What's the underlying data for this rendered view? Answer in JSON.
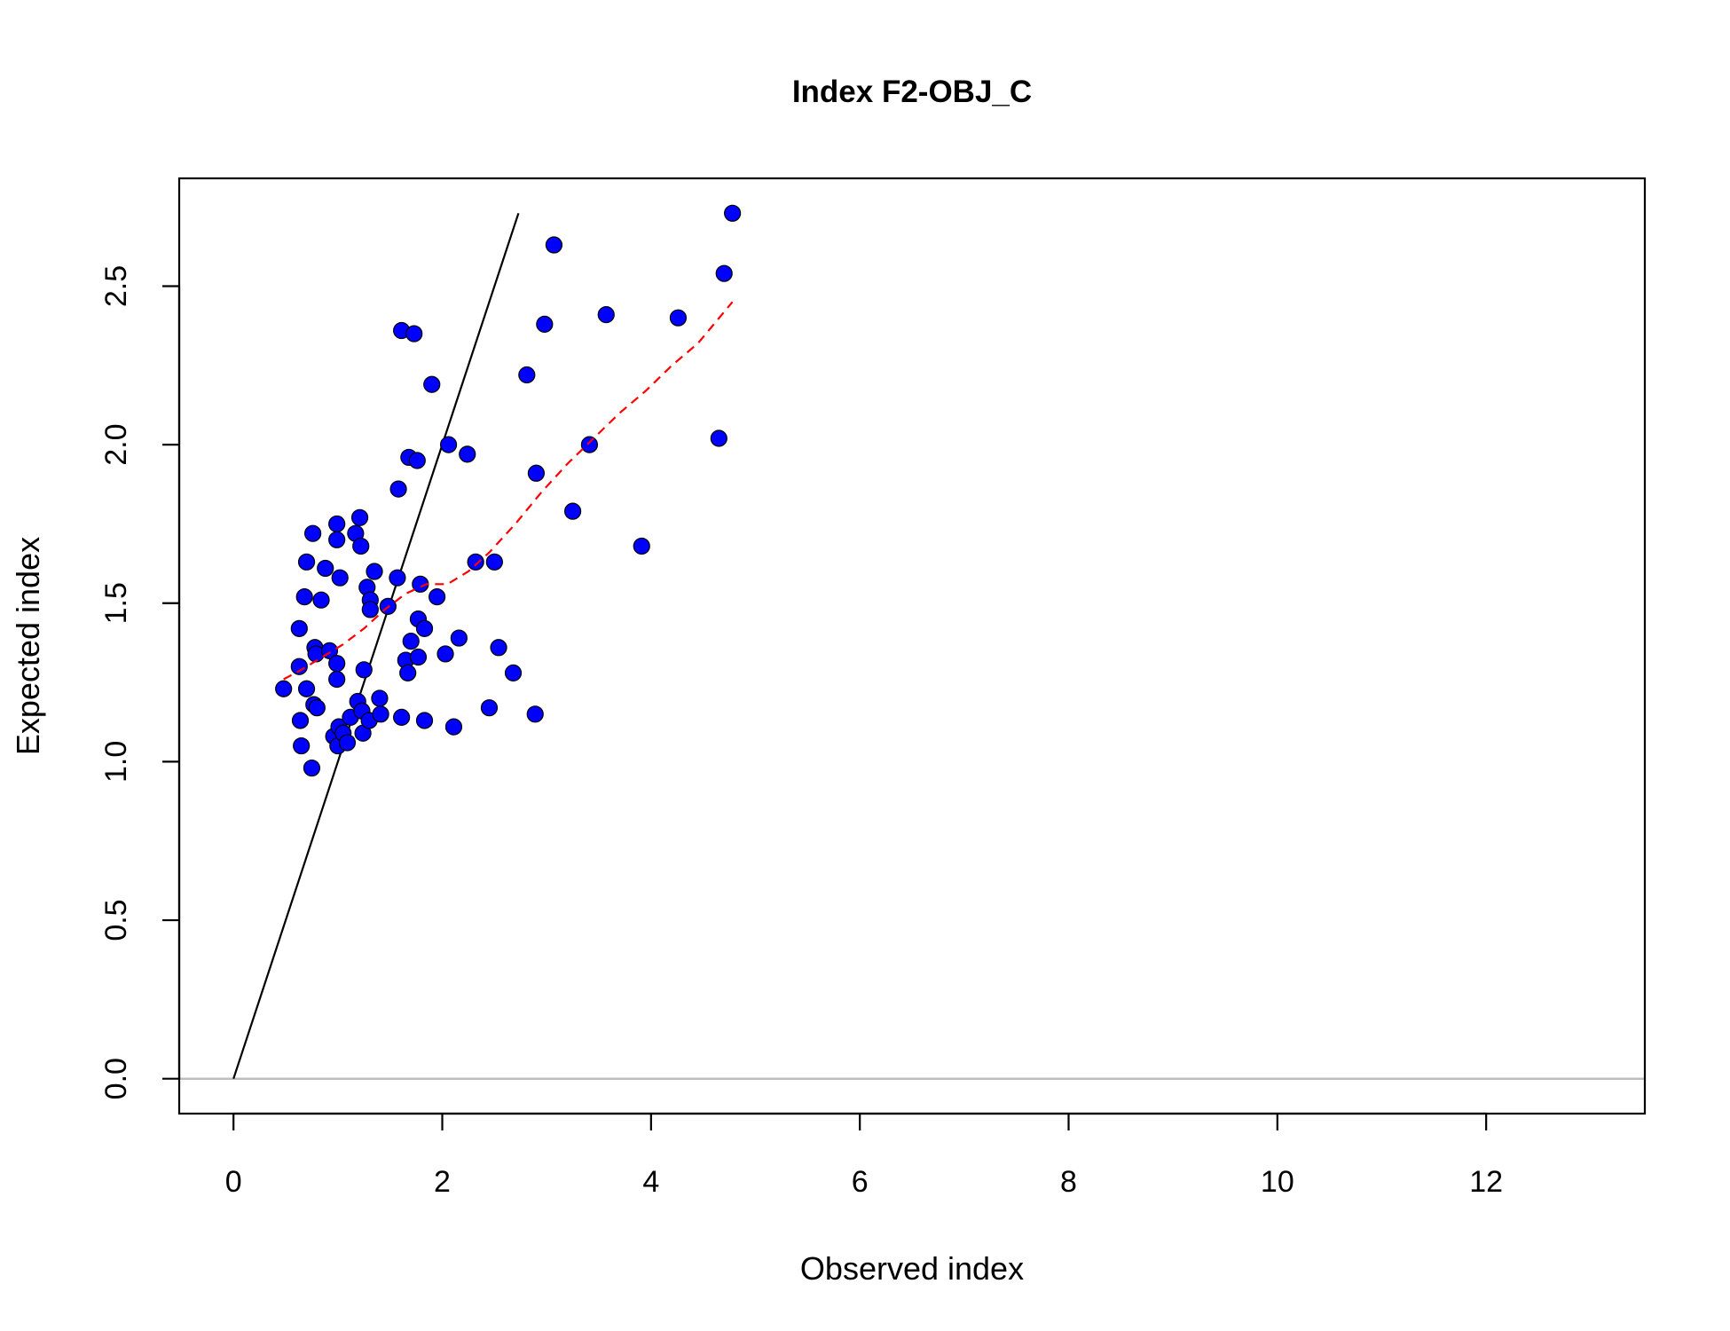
{
  "chart_data": {
    "type": "scatter",
    "title": "Index F2-OBJ_C",
    "xlabel": "Observed index",
    "ylabel": "Expected index",
    "xlim": [
      -0.52,
      13.52
    ],
    "ylim": [
      -0.11,
      2.84
    ],
    "x_ticks": [
      0,
      2,
      4,
      6,
      8,
      10,
      12
    ],
    "x_tick_labels": [
      "0",
      "2",
      "4",
      "6",
      "8",
      "10",
      "12"
    ],
    "y_ticks": [
      0.0,
      0.5,
      1.0,
      1.5,
      2.0,
      2.5
    ],
    "y_tick_labels": [
      "0.0",
      "0.5",
      "1.0",
      "1.5",
      "2.0",
      "2.5"
    ],
    "grid": false,
    "colors": {
      "points": "#0000ff",
      "point_outline": "#000000",
      "identity_line": "#000000",
      "smooth_line": "#ff0000",
      "zero_line": "#bebebe"
    },
    "series": [
      {
        "kind": "points",
        "points": [
          [
            0.48,
            1.23
          ],
          [
            0.63,
            1.42
          ],
          [
            0.63,
            1.3
          ],
          [
            0.64,
            1.13
          ],
          [
            0.65,
            1.05
          ],
          [
            0.68,
            1.52
          ],
          [
            0.7,
            1.63
          ],
          [
            0.7,
            1.23
          ],
          [
            0.75,
            0.98
          ],
          [
            0.76,
            1.72
          ],
          [
            0.77,
            1.18
          ],
          [
            0.78,
            1.36
          ],
          [
            0.79,
            1.34
          ],
          [
            0.8,
            1.17
          ],
          [
            0.84,
            1.51
          ],
          [
            0.88,
            1.61
          ],
          [
            0.92,
            1.35
          ],
          [
            0.96,
            1.08
          ],
          [
            0.99,
            1.75
          ],
          [
            0.99,
            1.7
          ],
          [
            0.99,
            1.31
          ],
          [
            0.99,
            1.26
          ],
          [
            1.0,
            1.05
          ],
          [
            1.01,
            1.11
          ],
          [
            1.02,
            1.58
          ],
          [
            1.05,
            1.09
          ],
          [
            1.09,
            1.06
          ],
          [
            1.12,
            1.14
          ],
          [
            1.17,
            1.72
          ],
          [
            1.19,
            1.19
          ],
          [
            1.21,
            1.77
          ],
          [
            1.22,
            1.68
          ],
          [
            1.23,
            1.16
          ],
          [
            1.24,
            1.09
          ],
          [
            1.25,
            1.29
          ],
          [
            1.28,
            1.55
          ],
          [
            1.3,
            1.13
          ],
          [
            1.31,
            1.51
          ],
          [
            1.31,
            1.48
          ],
          [
            1.35,
            1.6
          ],
          [
            1.4,
            1.2
          ],
          [
            1.41,
            1.15
          ],
          [
            1.48,
            1.49
          ],
          [
            1.57,
            1.58
          ],
          [
            1.58,
            1.86
          ],
          [
            1.61,
            2.36
          ],
          [
            1.61,
            1.14
          ],
          [
            1.65,
            1.32
          ],
          [
            1.67,
            1.28
          ],
          [
            1.68,
            1.96
          ],
          [
            1.7,
            1.38
          ],
          [
            1.73,
            2.35
          ],
          [
            1.76,
            1.95
          ],
          [
            1.77,
            1.45
          ],
          [
            1.77,
            1.33
          ],
          [
            1.79,
            1.56
          ],
          [
            1.83,
            1.42
          ],
          [
            1.83,
            1.13
          ],
          [
            1.9,
            2.19
          ],
          [
            1.95,
            1.52
          ],
          [
            2.03,
            1.34
          ],
          [
            2.06,
            2.0
          ],
          [
            2.11,
            1.11
          ],
          [
            2.16,
            1.39
          ],
          [
            2.24,
            1.97
          ],
          [
            2.32,
            1.63
          ],
          [
            2.45,
            1.17
          ],
          [
            2.5,
            1.63
          ],
          [
            2.54,
            1.36
          ],
          [
            2.68,
            1.28
          ],
          [
            2.81,
            2.22
          ],
          [
            2.89,
            1.15
          ],
          [
            2.9,
            1.91
          ],
          [
            2.98,
            2.38
          ],
          [
            3.07,
            2.63
          ],
          [
            3.25,
            1.79
          ],
          [
            3.41,
            2.0
          ],
          [
            3.57,
            2.41
          ],
          [
            3.91,
            1.68
          ],
          [
            4.26,
            2.4
          ],
          [
            4.65,
            2.02
          ],
          [
            4.7,
            2.54
          ],
          [
            4.78,
            2.73
          ]
        ]
      },
      {
        "kind": "identity_line",
        "from": [
          0,
          0
        ],
        "to": [
          2.73,
          2.73
        ]
      },
      {
        "kind": "smooth_line",
        "points": [
          [
            0.48,
            1.26
          ],
          [
            0.65,
            1.29
          ],
          [
            0.85,
            1.33
          ],
          [
            1.05,
            1.37
          ],
          [
            1.25,
            1.42
          ],
          [
            1.45,
            1.48
          ],
          [
            1.65,
            1.53
          ],
          [
            1.85,
            1.56
          ],
          [
            2.05,
            1.56
          ],
          [
            2.25,
            1.6
          ],
          [
            2.45,
            1.66
          ],
          [
            2.7,
            1.75
          ],
          [
            2.95,
            1.85
          ],
          [
            3.2,
            1.94
          ],
          [
            3.45,
            2.02
          ],
          [
            3.7,
            2.1
          ],
          [
            3.95,
            2.17
          ],
          [
            4.2,
            2.25
          ],
          [
            4.45,
            2.32
          ],
          [
            4.78,
            2.45
          ]
        ]
      },
      {
        "kind": "hline",
        "y": 0
      }
    ]
  }
}
